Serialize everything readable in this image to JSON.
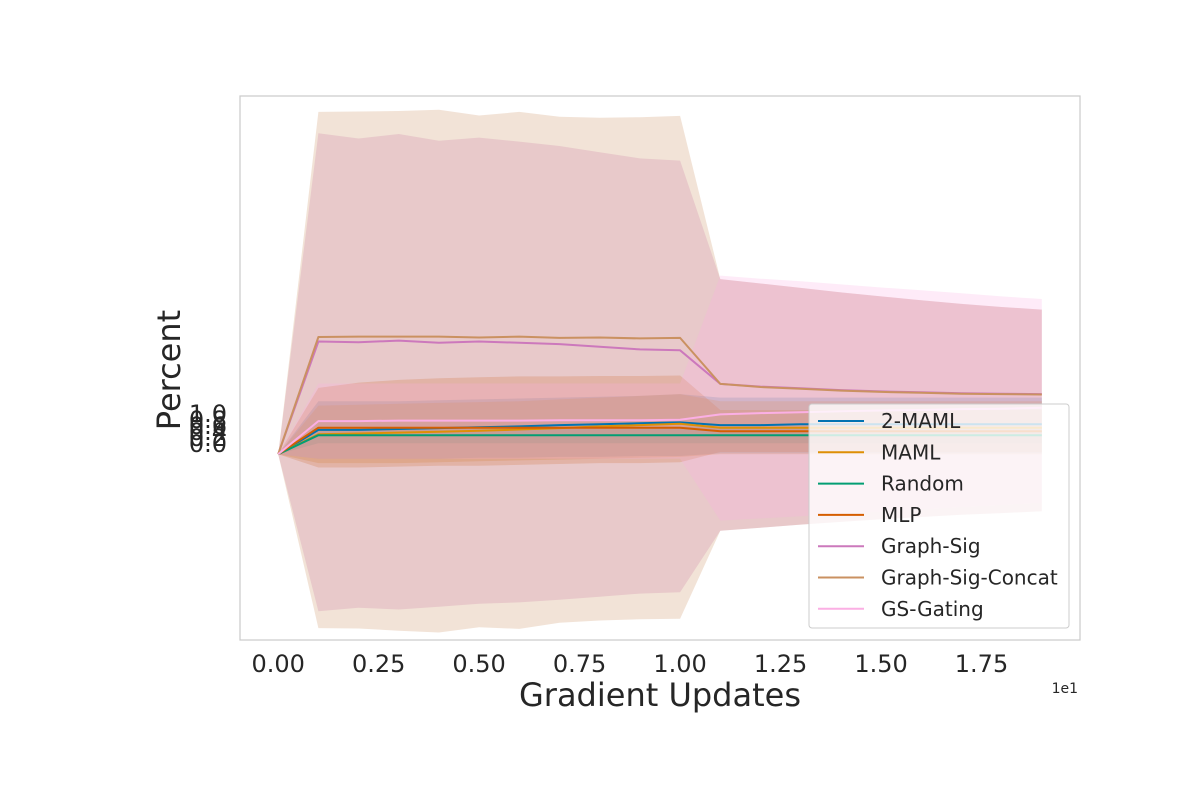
{
  "chart_data": {
    "type": "line",
    "xlabel": "Gradient Updates",
    "ylabel": "Percent",
    "x_offset_label": "1e1",
    "xlim": [
      -0.095,
      1.995
    ],
    "ylim": [
      -0.042,
      0.081
    ],
    "x_ticks": [
      0.0,
      0.25,
      0.5,
      0.75,
      1.0,
      1.25,
      1.5,
      1.75
    ],
    "x_tick_labels": [
      "0.00",
      "0.25",
      "0.50",
      "0.75",
      "1.00",
      "1.25",
      "1.50",
      "1.75"
    ],
    "y_tick_labels": [
      "0.0",
      "0.2",
      "0.4",
      "0.6",
      "0.8",
      "1.0"
    ],
    "grid": false,
    "legend_position": "lower-right",
    "x": [
      0.0,
      0.1,
      0.2,
      0.3,
      0.4,
      0.5,
      0.6,
      0.7,
      0.8,
      0.9,
      1.0,
      1.1,
      1.2,
      1.3,
      1.4,
      1.5,
      1.6,
      1.7,
      1.8,
      1.9
    ],
    "series": [
      {
        "name": "2-MAML",
        "color": "#0173b2",
        "values": [
          0.0,
          0.0055,
          0.0055,
          0.0057,
          0.0059,
          0.0061,
          0.0063,
          0.0066,
          0.0068,
          0.007,
          0.0072,
          0.0066,
          0.0066,
          0.0068,
          0.0068,
          0.0068,
          0.0068,
          0.0068,
          0.0068,
          0.0068
        ],
        "lower": [
          0.0,
          -0.001,
          -0.001,
          -0.001,
          -0.001,
          -0.0008,
          -0.0008,
          -0.0006,
          -0.0006,
          -0.0004,
          -0.0004,
          0.0002,
          0.0002,
          0.0002,
          0.0002,
          0.0002,
          0.0002,
          0.0002,
          0.0002,
          0.0002
        ],
        "upper": [
          0.0,
          0.012,
          0.012,
          0.012,
          0.0122,
          0.0124,
          0.0126,
          0.0128,
          0.013,
          0.0132,
          0.0136,
          0.0128,
          0.0128,
          0.0128,
          0.0128,
          0.0128,
          0.0128,
          0.0128,
          0.0128,
          0.0128
        ]
      },
      {
        "name": "MAML",
        "color": "#de8f05",
        "values": [
          0.0,
          0.0045,
          0.0047,
          0.0049,
          0.0051,
          0.0053,
          0.0056,
          0.0059,
          0.0063,
          0.0066,
          0.0069,
          0.006,
          0.006,
          0.006,
          0.006,
          0.006,
          0.006,
          0.006,
          0.006,
          0.006
        ],
        "lower": [
          0.0,
          -0.002,
          -0.002,
          -0.002,
          -0.0018,
          -0.0016,
          -0.0014,
          -0.0012,
          -0.001,
          -0.0008,
          -0.0006,
          0.0,
          0.0,
          0.0,
          0.0,
          0.0,
          0.0,
          0.0,
          0.0,
          0.0
        ],
        "upper": [
          0.0,
          0.011,
          0.0112,
          0.0114,
          0.0116,
          0.0118,
          0.012,
          0.0124,
          0.0128,
          0.0132,
          0.0136,
          0.012,
          0.012,
          0.012,
          0.012,
          0.012,
          0.012,
          0.012,
          0.012,
          0.012
        ]
      },
      {
        "name": "Random",
        "color": "#029e73",
        "values": [
          0.0,
          0.0043,
          0.0043,
          0.0043,
          0.0043,
          0.0043,
          0.0043,
          0.0043,
          0.0043,
          0.0043,
          0.0043,
          0.0043,
          0.0043,
          0.0043,
          0.0043,
          0.0043,
          0.0043,
          0.0043,
          0.0043,
          0.0043
        ],
        "lower": [
          0.0,
          0.0025,
          0.0025,
          0.0025,
          0.0025,
          0.0025,
          0.0025,
          0.0025,
          0.0025,
          0.0025,
          0.0025,
          0.0025,
          0.0025,
          0.0025,
          0.0025,
          0.0025,
          0.0025,
          0.0025,
          0.0025,
          0.0025
        ],
        "upper": [
          0.0,
          0.0062,
          0.0062,
          0.0062,
          0.0062,
          0.0062,
          0.0062,
          0.0062,
          0.0062,
          0.0062,
          0.0062,
          0.0062,
          0.0062,
          0.0062,
          0.0062,
          0.0062,
          0.0062,
          0.0062,
          0.0062,
          0.0062
        ]
      },
      {
        "name": "MLP",
        "color": "#d55e00",
        "values": [
          0.0,
          0.006,
          0.006,
          0.006,
          0.006,
          0.006,
          0.006,
          0.006,
          0.006,
          0.006,
          0.006,
          0.0052,
          0.0052,
          0.0052,
          0.0052,
          0.0052,
          0.0052,
          0.0052,
          0.0052,
          0.0052
        ],
        "lower": [
          0.0,
          -0.003,
          -0.003,
          -0.0028,
          -0.0026,
          -0.0026,
          -0.0024,
          -0.0022,
          -0.002,
          -0.002,
          -0.0018,
          0.0005,
          0.0005,
          0.0005,
          0.0005,
          0.0005,
          0.0005,
          0.0005,
          0.0005,
          0.0005
        ],
        "upper": [
          0.0,
          0.015,
          0.0162,
          0.0168,
          0.0172,
          0.0174,
          0.0176,
          0.0176,
          0.0177,
          0.0177,
          0.0178,
          0.01,
          0.01,
          0.01,
          0.01,
          0.01,
          0.01,
          0.01,
          0.01,
          0.01
        ]
      },
      {
        "name": "Graph-Sig",
        "color": "#cc78bc",
        "values": [
          0.0,
          0.0255,
          0.0253,
          0.0257,
          0.0252,
          0.0255,
          0.0252,
          0.0249,
          0.0243,
          0.0237,
          0.0235,
          0.0159,
          0.0153,
          0.0149,
          0.0145,
          0.0142,
          0.014,
          0.0138,
          0.0137,
          0.0136
        ],
        "lower": [
          0.0,
          -0.0355,
          -0.0347,
          -0.0351,
          -0.0345,
          -0.0338,
          -0.0335,
          -0.0329,
          -0.0322,
          -0.0315,
          -0.0312,
          -0.0173,
          -0.0166,
          -0.0159,
          -0.0153,
          -0.0147,
          -0.0142,
          -0.0137,
          -0.0133,
          -0.0129
        ],
        "upper": [
          0.0,
          0.0726,
          0.0714,
          0.0724,
          0.0709,
          0.0716,
          0.0707,
          0.0697,
          0.0683,
          0.0669,
          0.0664,
          0.0396,
          0.0386,
          0.0376,
          0.0366,
          0.0357,
          0.0348,
          0.034,
          0.0333,
          0.0327
        ]
      },
      {
        "name": "Graph-Sig-Concat",
        "color": "#ca9161",
        "values": [
          0.0,
          0.0265,
          0.0266,
          0.0266,
          0.0266,
          0.0264,
          0.0266,
          0.0263,
          0.0264,
          0.0262,
          0.0263,
          0.0159,
          0.0152,
          0.0148,
          0.0144,
          0.0141,
          0.0139,
          0.0137,
          0.0136,
          0.0135
        ],
        "lower": [
          0.0,
          -0.0393,
          -0.0394,
          -0.0399,
          -0.0403,
          -0.0391,
          -0.0395,
          -0.0381,
          -0.0376,
          -0.0373,
          -0.0372,
          -0.0173,
          -0.0166,
          -0.0159,
          -0.0153,
          -0.0147,
          -0.0142,
          -0.0137,
          -0.0133,
          -0.0129
        ],
        "upper": [
          0.0,
          0.0774,
          0.0775,
          0.0776,
          0.0779,
          0.0766,
          0.0774,
          0.0763,
          0.0761,
          0.0762,
          0.0765,
          0.0396,
          0.0386,
          0.0376,
          0.0366,
          0.0357,
          0.0348,
          0.034,
          0.0333,
          0.0327
        ]
      },
      {
        "name": "GS-Gating",
        "color": "#fbafe4",
        "values": [
          0.0,
          0.0075,
          0.0075,
          0.0076,
          0.0076,
          0.0076,
          0.0076,
          0.0077,
          0.0077,
          0.0077,
          0.0078,
          0.009,
          0.0093,
          0.0095,
          0.0097,
          0.0099,
          0.01,
          0.0102,
          0.0103,
          0.0105
        ],
        "lower": [
          0.0,
          -0.001,
          -0.001,
          -0.001,
          -0.001,
          -0.001,
          -0.001,
          -0.001,
          -0.001,
          -0.001,
          -0.001,
          -0.015,
          -0.0145,
          -0.014,
          -0.0135,
          -0.013,
          -0.0125,
          -0.012,
          -0.0115,
          -0.011
        ],
        "upper": [
          0.0,
          0.016,
          0.016,
          0.016,
          0.016,
          0.016,
          0.016,
          0.016,
          0.016,
          0.016,
          0.016,
          0.0404,
          0.0397,
          0.0391,
          0.0384,
          0.0377,
          0.0371,
          0.0364,
          0.0357,
          0.0351
        ]
      }
    ]
  }
}
